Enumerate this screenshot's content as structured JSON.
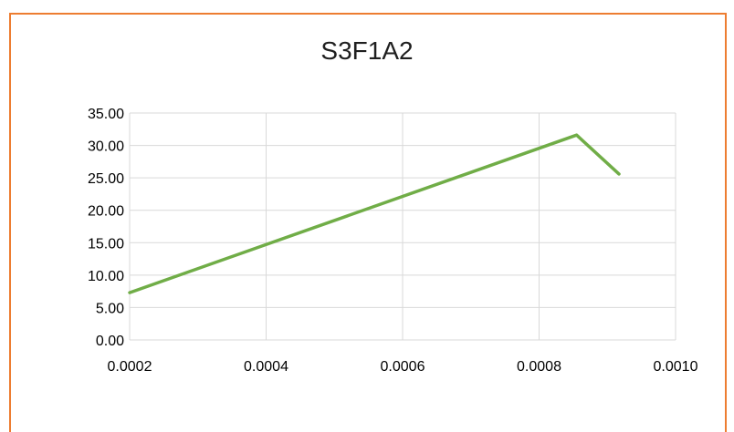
{
  "header_fragment": "",
  "chart_data": {
    "type": "line",
    "title": "S3F1A2",
    "xlabel": "",
    "ylabel": "",
    "xlim": [
      0.0002,
      0.001
    ],
    "ylim": [
      0,
      35
    ],
    "x_ticks": [
      "0.0002",
      "0.0004",
      "0.0006",
      "0.0008",
      "0.0010"
    ],
    "y_ticks": [
      "0.00",
      "5.00",
      "10.00",
      "15.00",
      "20.00",
      "25.00",
      "30.00",
      "35.00"
    ],
    "grid": true,
    "legend": "none",
    "series": [
      {
        "color": "#70AD47",
        "x": [
          0.0002,
          0.000855,
          0.000917
        ],
        "y": [
          7.3,
          31.6,
          25.6
        ]
      }
    ]
  }
}
